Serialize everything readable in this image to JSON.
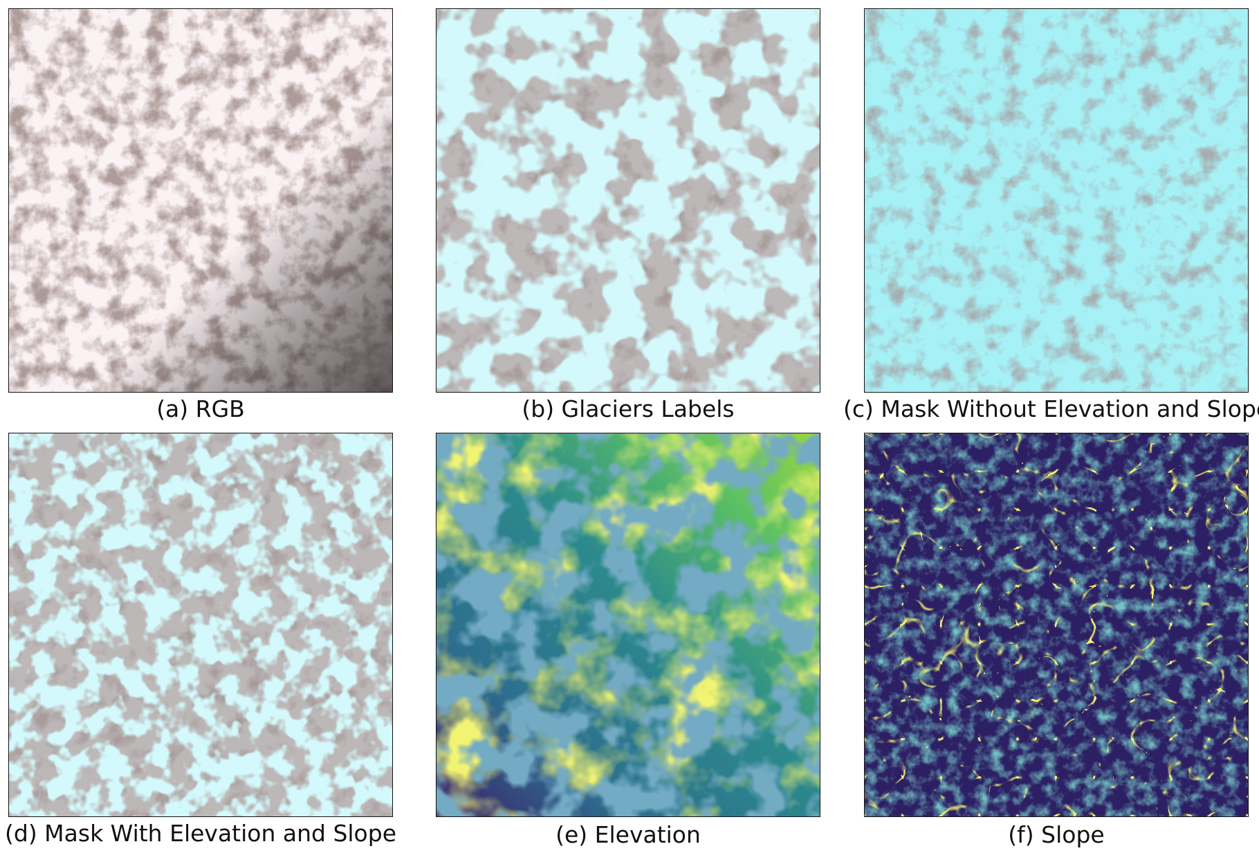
{
  "panels": [
    {
      "id": "a",
      "caption": "(a) RGB"
    },
    {
      "id": "b",
      "caption": "(b) Glaciers Labels"
    },
    {
      "id": "c",
      "caption": "(c) Mask Without Elevation and Slope"
    },
    {
      "id": "d",
      "caption": "(d) Mask With Elevation and Slope"
    },
    {
      "id": "e",
      "caption": "(e) Elevation"
    },
    {
      "id": "f",
      "caption": "(f) Slope"
    }
  ],
  "colors": {
    "snow": "#fbf2f4",
    "rock": "#6a5352",
    "gray_base": "#bdb8b8",
    "glacier_cyan": "#a6f1f6",
    "viridis_dark": "#3b1f6a",
    "viridis_mid": "#2b8a8c",
    "viridis_yellow": "#e0e62b"
  }
}
